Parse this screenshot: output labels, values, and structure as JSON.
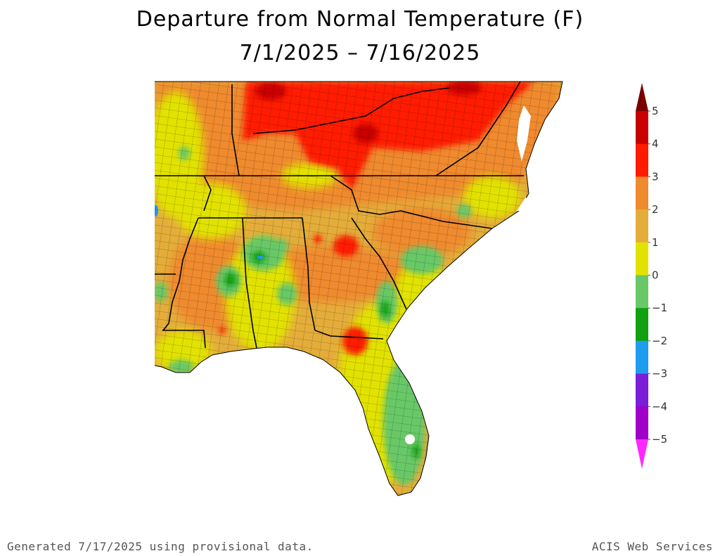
{
  "title": {
    "line1": "Departure from Normal Temperature (F)",
    "line2": "7/1/2025 – 7/16/2025"
  },
  "legend": {
    "levels": [
      {
        "label": "5",
        "color": "#7a0000"
      },
      {
        "label": "4",
        "color": "#c80000"
      },
      {
        "label": "3",
        "color": "#ff1a00"
      },
      {
        "label": "2",
        "color": "#ef8a2e"
      },
      {
        "label": "1",
        "color": "#e4ad3a"
      },
      {
        "label": "0",
        "color": "#e2e200"
      },
      {
        "label": "−1",
        "color": "#68c868"
      },
      {
        "label": "−2",
        "color": "#10a010"
      },
      {
        "label": "−3",
        "color": "#1e9cf0"
      },
      {
        "label": "−4",
        "color": "#7a1ed8"
      },
      {
        "label": "−5",
        "color": "#a000c8"
      },
      {
        "label": "",
        "color": "#ff28ff"
      }
    ]
  },
  "footer": {
    "left": "Generated 7/17/2025 using provisional data.",
    "right": "ACIS Web Services"
  }
}
